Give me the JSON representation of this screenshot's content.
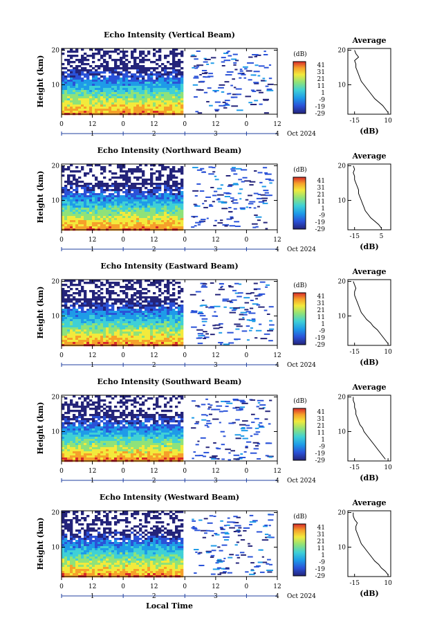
{
  "figure": {
    "xlabel": "Local Time",
    "date_label": "Oct 2024",
    "colorbar_unit": "(dB)",
    "average_title": "Average",
    "average_xlabel": "(dB)"
  },
  "chart_data": [
    {
      "type": "heatmap",
      "title": "Echo Intensity (Vertical Beam)",
      "ylabel": "Height (km)",
      "y_ticks": [
        10,
        20
      ],
      "ylim": [
        1.5,
        20.5
      ],
      "x_hour_ticks": [
        "0",
        "12",
        "0",
        "12",
        "0",
        "12",
        "0",
        "12"
      ],
      "x_day_ticks": [
        "1",
        "2",
        "3",
        "4"
      ],
      "xlim_hours": [
        0,
        84
      ],
      "continuous_data_until_hour": 47,
      "colorbar": {
        "ticks": [
          41,
          31,
          21,
          11,
          1,
          -9,
          -19,
          -29
        ],
        "range": [
          -29,
          46
        ],
        "colors": [
          "#24247a",
          "#2a52d8",
          "#1e9be8",
          "#3fd0d6",
          "#8ee27a",
          "#f2ea3c",
          "#f6a02a",
          "#d82a2a"
        ]
      },
      "average_profile": {
        "xlabel": "(dB)",
        "x_ticks": [
          -15,
          10
        ],
        "height_km": [
          2,
          3,
          4,
          5,
          6,
          7,
          8,
          9,
          10,
          11,
          12,
          13,
          14,
          15,
          16,
          17,
          18,
          19,
          20
        ],
        "db": [
          10,
          8,
          6,
          3,
          0,
          -2,
          -4,
          -6,
          -8,
          -10,
          -11,
          -12,
          -13,
          -14,
          -14,
          -15,
          -12,
          -14,
          -15
        ]
      }
    },
    {
      "type": "heatmap",
      "title": "Echo Intensity (Northward Beam)",
      "ylabel": "Height (km)",
      "y_ticks": [
        10,
        20
      ],
      "ylim": [
        1.5,
        20.5
      ],
      "x_hour_ticks": [
        "0",
        "12",
        "0",
        "12",
        "0",
        "12",
        "0",
        "12"
      ],
      "x_day_ticks": [
        "1",
        "2",
        "3",
        "4"
      ],
      "xlim_hours": [
        0,
        84
      ],
      "continuous_data_until_hour": 47,
      "colorbar": {
        "ticks": [
          41,
          31,
          21,
          11,
          1,
          -9,
          -19,
          -29
        ],
        "range": [
          -29,
          46
        ],
        "colors": [
          "#24247a",
          "#2a52d8",
          "#1e9be8",
          "#3fd0d6",
          "#8ee27a",
          "#f2ea3c",
          "#f6a02a",
          "#d82a2a"
        ]
      },
      "average_profile": {
        "xlabel": "(dB)",
        "x_ticks": [
          -15,
          5
        ],
        "height_km": [
          2,
          3,
          4,
          5,
          6,
          7,
          8,
          9,
          10,
          11,
          12,
          13,
          14,
          15,
          16,
          17,
          18,
          19,
          20
        ],
        "db": [
          5,
          3,
          0,
          -3,
          -5,
          -7,
          -8,
          -9,
          -10,
          -11,
          -12,
          -12,
          -13,
          -14,
          -15,
          -15,
          -16,
          -15,
          -16
        ]
      }
    },
    {
      "type": "heatmap",
      "title": "Echo Intensity (Eastward Beam)",
      "ylabel": "Height (km)",
      "y_ticks": [
        10,
        20
      ],
      "ylim": [
        1.5,
        20.5
      ],
      "x_hour_ticks": [
        "0",
        "12",
        "0",
        "12",
        "0",
        "12",
        "0",
        "12"
      ],
      "x_day_ticks": [
        "1",
        "2",
        "3",
        "4"
      ],
      "xlim_hours": [
        0,
        84
      ],
      "continuous_data_until_hour": 47,
      "colorbar": {
        "ticks": [
          41,
          31,
          21,
          11,
          1,
          -9,
          -19,
          -29
        ],
        "range": [
          -29,
          46
        ],
        "colors": [
          "#24247a",
          "#2a52d8",
          "#1e9be8",
          "#3fd0d6",
          "#8ee27a",
          "#f2ea3c",
          "#f6a02a",
          "#d82a2a"
        ]
      },
      "average_profile": {
        "xlabel": "(dB)",
        "x_ticks": [
          -15,
          10
        ],
        "height_km": [
          2,
          3,
          4,
          5,
          6,
          7,
          8,
          9,
          10,
          11,
          12,
          13,
          14,
          15,
          16,
          17,
          18,
          19,
          20
        ],
        "db": [
          10,
          8,
          6,
          4,
          2,
          -1,
          -3,
          -6,
          -8,
          -10,
          -11,
          -12,
          -13,
          -14,
          -15,
          -15,
          -14,
          -15,
          -16
        ]
      }
    },
    {
      "type": "heatmap",
      "title": "Echo Intensity (Southward Beam)",
      "ylabel": "Height (km)",
      "y_ticks": [
        10,
        20
      ],
      "ylim": [
        1.5,
        20.5
      ],
      "x_hour_ticks": [
        "0",
        "12",
        "0",
        "12",
        "0",
        "12",
        "0",
        "12"
      ],
      "x_day_ticks": [
        "1",
        "2",
        "3",
        "4"
      ],
      "xlim_hours": [
        0,
        84
      ],
      "continuous_data_until_hour": 47,
      "colorbar": {
        "ticks": [
          41,
          31,
          21,
          11,
          1,
          -9,
          -19,
          -29
        ],
        "range": [
          -29,
          46
        ],
        "colors": [
          "#24247a",
          "#2a52d8",
          "#1e9be8",
          "#3fd0d6",
          "#8ee27a",
          "#f2ea3c",
          "#f6a02a",
          "#d82a2a"
        ]
      },
      "average_profile": {
        "xlabel": "(dB)",
        "x_ticks": [
          -15,
          10
        ],
        "height_km": [
          2,
          3,
          4,
          5,
          6,
          7,
          8,
          9,
          10,
          11,
          12,
          13,
          14,
          15,
          16,
          17,
          18,
          19,
          20
        ],
        "db": [
          8,
          6,
          4,
          2,
          0,
          -2,
          -4,
          -6,
          -8,
          -9,
          -11,
          -12,
          -13,
          -14,
          -14,
          -15,
          -15,
          -16,
          -16
        ]
      }
    },
    {
      "type": "heatmap",
      "title": "Echo Intensity (Westward Beam)",
      "ylabel": "Height (km)",
      "y_ticks": [
        10,
        20
      ],
      "ylim": [
        1.5,
        20.5
      ],
      "x_hour_ticks": [
        "0",
        "12",
        "0",
        "12",
        "0",
        "12",
        "0",
        "12"
      ],
      "x_day_ticks": [
        "1",
        "2",
        "3",
        "4"
      ],
      "xlim_hours": [
        0,
        84
      ],
      "continuous_data_until_hour": 47,
      "colorbar": {
        "ticks": [
          41,
          31,
          21,
          11,
          1,
          -9,
          -19,
          -29
        ],
        "range": [
          -29,
          46
        ],
        "colors": [
          "#24247a",
          "#2a52d8",
          "#1e9be8",
          "#3fd0d6",
          "#8ee27a",
          "#f2ea3c",
          "#f6a02a",
          "#d82a2a"
        ]
      },
      "average_profile": {
        "xlabel": "(dB)",
        "x_ticks": [
          -15,
          10
        ],
        "height_km": [
          2,
          3,
          4,
          5,
          6,
          7,
          8,
          9,
          10,
          11,
          12,
          13,
          14,
          15,
          16,
          17,
          18,
          19,
          20
        ],
        "db": [
          10,
          8,
          5,
          3,
          0,
          -2,
          -4,
          -6,
          -8,
          -10,
          -11,
          -12,
          -13,
          -14,
          -14,
          -13,
          -15,
          -16,
          -16
        ]
      }
    }
  ]
}
